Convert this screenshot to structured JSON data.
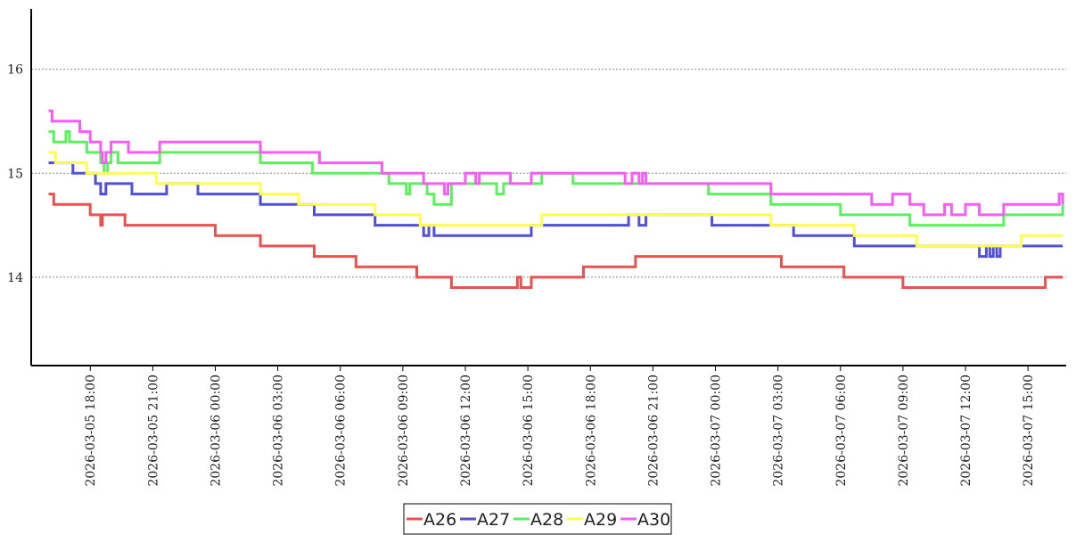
{
  "chart_data": {
    "type": "line",
    "step": true,
    "title": "",
    "xlabel": "",
    "ylabel": "",
    "ylim": [
      13.15,
      16.58
    ],
    "yticks": [
      14,
      15,
      16
    ],
    "grid": "horizontal dotted",
    "legend_placement": "bottom-center",
    "xticks": [
      "2026-03-05 18:00",
      "2026-03-05 21:00",
      "2026-03-06 00:00",
      "2026-03-06 03:00",
      "2026-03-06 06:00",
      "2026-03-06 09:00",
      "2026-03-06 12:00",
      "2026-03-06 15:00",
      "2026-03-06 18:00",
      "2026-03-06 21:00",
      "2026-03-07 00:00",
      "2026-03-07 03:00",
      "2026-03-07 06:00",
      "2026-03-07 09:00",
      "2026-03-07 12:00",
      "2026-03-07 15:00"
    ],
    "xlim": [
      "2026-03-05 15:10",
      "2026-03-07 16:50"
    ],
    "series": [
      {
        "name": "A26",
        "color": "#e8524f",
        "points": [
          [
            "2026-03-05 16:00",
            14.8
          ],
          [
            "2026-03-05 16:15",
            14.7
          ],
          [
            "2026-03-05 18:00",
            14.6
          ],
          [
            "2026-03-05 18:30",
            14.5
          ],
          [
            "2026-03-05 18:35",
            14.6
          ],
          [
            "2026-03-05 19:40",
            14.5
          ],
          [
            "2026-03-06 00:00",
            14.4
          ],
          [
            "2026-03-06 02:10",
            14.3
          ],
          [
            "2026-03-06 04:45",
            14.2
          ],
          [
            "2026-03-06 06:45",
            14.1
          ],
          [
            "2026-03-06 09:40",
            14.0
          ],
          [
            "2026-03-06 11:20",
            13.9
          ],
          [
            "2026-03-06 11:30",
            13.9
          ],
          [
            "2026-03-06 14:30",
            14.0
          ],
          [
            "2026-03-06 14:40",
            13.9
          ],
          [
            "2026-03-06 15:10",
            14.0
          ],
          [
            "2026-03-06 17:40",
            14.1
          ],
          [
            "2026-03-06 20:10",
            14.2
          ],
          [
            "2026-03-07 03:10",
            14.1
          ],
          [
            "2026-03-07 06:10",
            14.0
          ],
          [
            "2026-03-07 09:00",
            13.9
          ],
          [
            "2026-03-07 15:50",
            14.0
          ],
          [
            "2026-03-07 16:40",
            14.0
          ]
        ]
      },
      {
        "name": "A27",
        "color": "#5050d8",
        "points": [
          [
            "2026-03-05 16:00",
            15.1
          ],
          [
            "2026-03-05 17:10",
            15.0
          ],
          [
            "2026-03-05 18:15",
            14.9
          ],
          [
            "2026-03-05 18:30",
            14.8
          ],
          [
            "2026-03-05 18:45",
            14.9
          ],
          [
            "2026-03-05 20:00",
            14.8
          ],
          [
            "2026-03-05 21:40",
            14.9
          ],
          [
            "2026-03-05 23:10",
            14.8
          ],
          [
            "2026-03-06 02:10",
            14.7
          ],
          [
            "2026-03-06 04:45",
            14.6
          ],
          [
            "2026-03-06 07:40",
            14.5
          ],
          [
            "2026-03-06 10:00",
            14.4
          ],
          [
            "2026-03-06 10:15",
            14.5
          ],
          [
            "2026-03-06 10:30",
            14.4
          ],
          [
            "2026-03-06 15:10",
            14.5
          ],
          [
            "2026-03-06 19:50",
            14.6
          ],
          [
            "2026-03-06 20:20",
            14.5
          ],
          [
            "2026-03-06 20:40",
            14.6
          ],
          [
            "2026-03-06 23:50",
            14.5
          ],
          [
            "2026-03-07 03:45",
            14.4
          ],
          [
            "2026-03-07 06:40",
            14.3
          ],
          [
            "2026-03-07 12:40",
            14.2
          ],
          [
            "2026-03-07 13:00",
            14.3
          ],
          [
            "2026-03-07 13:10",
            14.2
          ],
          [
            "2026-03-07 13:20",
            14.3
          ],
          [
            "2026-03-07 13:30",
            14.2
          ],
          [
            "2026-03-07 13:40",
            14.3
          ],
          [
            "2026-03-07 16:40",
            14.3
          ]
        ]
      },
      {
        "name": "A28",
        "color": "#5cf05c",
        "points": [
          [
            "2026-03-05 16:00",
            15.4
          ],
          [
            "2026-03-05 16:15",
            15.3
          ],
          [
            "2026-03-05 16:50",
            15.4
          ],
          [
            "2026-03-05 17:00",
            15.3
          ],
          [
            "2026-03-05 17:50",
            15.2
          ],
          [
            "2026-03-05 18:30",
            15.1
          ],
          [
            "2026-03-05 18:40",
            15.0
          ],
          [
            "2026-03-05 18:50",
            15.1
          ],
          [
            "2026-03-05 19:00",
            15.2
          ],
          [
            "2026-03-05 19:20",
            15.1
          ],
          [
            "2026-03-05 21:20",
            15.2
          ],
          [
            "2026-03-06 02:10",
            15.1
          ],
          [
            "2026-03-06 04:40",
            15.0
          ],
          [
            "2026-03-06 08:20",
            14.9
          ],
          [
            "2026-03-06 09:10",
            14.8
          ],
          [
            "2026-03-06 09:20",
            14.9
          ],
          [
            "2026-03-06 10:10",
            14.8
          ],
          [
            "2026-03-06 10:30",
            14.7
          ],
          [
            "2026-03-06 11:20",
            14.9
          ],
          [
            "2026-03-06 13:30",
            14.8
          ],
          [
            "2026-03-06 13:50",
            14.9
          ],
          [
            "2026-03-06 15:40",
            15.0
          ],
          [
            "2026-03-06 17:10",
            14.9
          ],
          [
            "2026-03-06 23:40",
            14.8
          ],
          [
            "2026-03-07 02:40",
            14.7
          ],
          [
            "2026-03-07 06:00",
            14.6
          ],
          [
            "2026-03-07 09:20",
            14.5
          ],
          [
            "2026-03-07 13:50",
            14.6
          ],
          [
            "2026-03-07 16:40",
            14.7
          ]
        ]
      },
      {
        "name": "A29",
        "color": "#ffff4d",
        "points": [
          [
            "2026-03-05 16:00",
            15.2
          ],
          [
            "2026-03-05 16:20",
            15.1
          ],
          [
            "2026-03-05 17:50",
            15.0
          ],
          [
            "2026-03-05 21:10",
            14.9
          ],
          [
            "2026-03-06 02:10",
            14.8
          ],
          [
            "2026-03-06 04:00",
            14.7
          ],
          [
            "2026-03-06 07:40",
            14.6
          ],
          [
            "2026-03-06 09:50",
            14.5
          ],
          [
            "2026-03-06 15:40",
            14.6
          ],
          [
            "2026-03-06 23:50",
            14.6
          ],
          [
            "2026-03-07 02:40",
            14.5
          ],
          [
            "2026-03-07 06:40",
            14.4
          ],
          [
            "2026-03-07 09:40",
            14.3
          ],
          [
            "2026-03-07 14:40",
            14.4
          ],
          [
            "2026-03-07 16:40",
            14.4
          ]
        ]
      },
      {
        "name": "A30",
        "color": "#f75cf7",
        "points": [
          [
            "2026-03-05 16:00",
            15.6
          ],
          [
            "2026-03-05 16:10",
            15.5
          ],
          [
            "2026-03-05 17:30",
            15.4
          ],
          [
            "2026-03-05 18:00",
            15.3
          ],
          [
            "2026-03-05 18:30",
            15.2
          ],
          [
            "2026-03-05 18:35",
            15.1
          ],
          [
            "2026-03-05 18:45",
            15.2
          ],
          [
            "2026-03-05 19:00",
            15.3
          ],
          [
            "2026-03-05 19:50",
            15.2
          ],
          [
            "2026-03-05 21:20",
            15.3
          ],
          [
            "2026-03-06 02:10",
            15.2
          ],
          [
            "2026-03-06 05:00",
            15.1
          ],
          [
            "2026-03-06 08:00",
            15.0
          ],
          [
            "2026-03-06 10:00",
            14.9
          ],
          [
            "2026-03-06 11:00",
            14.8
          ],
          [
            "2026-03-06 11:10",
            14.9
          ],
          [
            "2026-03-06 12:00",
            15.0
          ],
          [
            "2026-03-06 12:30",
            14.9
          ],
          [
            "2026-03-06 12:40",
            15.0
          ],
          [
            "2026-03-06 14:10",
            14.9
          ],
          [
            "2026-03-06 15:10",
            15.0
          ],
          [
            "2026-03-06 19:40",
            14.9
          ],
          [
            "2026-03-06 20:00",
            15.0
          ],
          [
            "2026-03-06 20:20",
            14.9
          ],
          [
            "2026-03-06 20:30",
            15.0
          ],
          [
            "2026-03-06 20:40",
            14.9
          ],
          [
            "2026-03-07 02:40",
            14.8
          ],
          [
            "2026-03-07 07:30",
            14.7
          ],
          [
            "2026-03-07 08:30",
            14.8
          ],
          [
            "2026-03-07 09:20",
            14.7
          ],
          [
            "2026-03-07 10:00",
            14.6
          ],
          [
            "2026-03-07 11:00",
            14.7
          ],
          [
            "2026-03-07 11:20",
            14.6
          ],
          [
            "2026-03-07 12:00",
            14.7
          ],
          [
            "2026-03-07 12:40",
            14.6
          ],
          [
            "2026-03-07 13:50",
            14.7
          ],
          [
            "2026-03-07 16:30",
            14.8
          ],
          [
            "2026-03-07 16:40",
            14.7
          ]
        ]
      }
    ]
  }
}
